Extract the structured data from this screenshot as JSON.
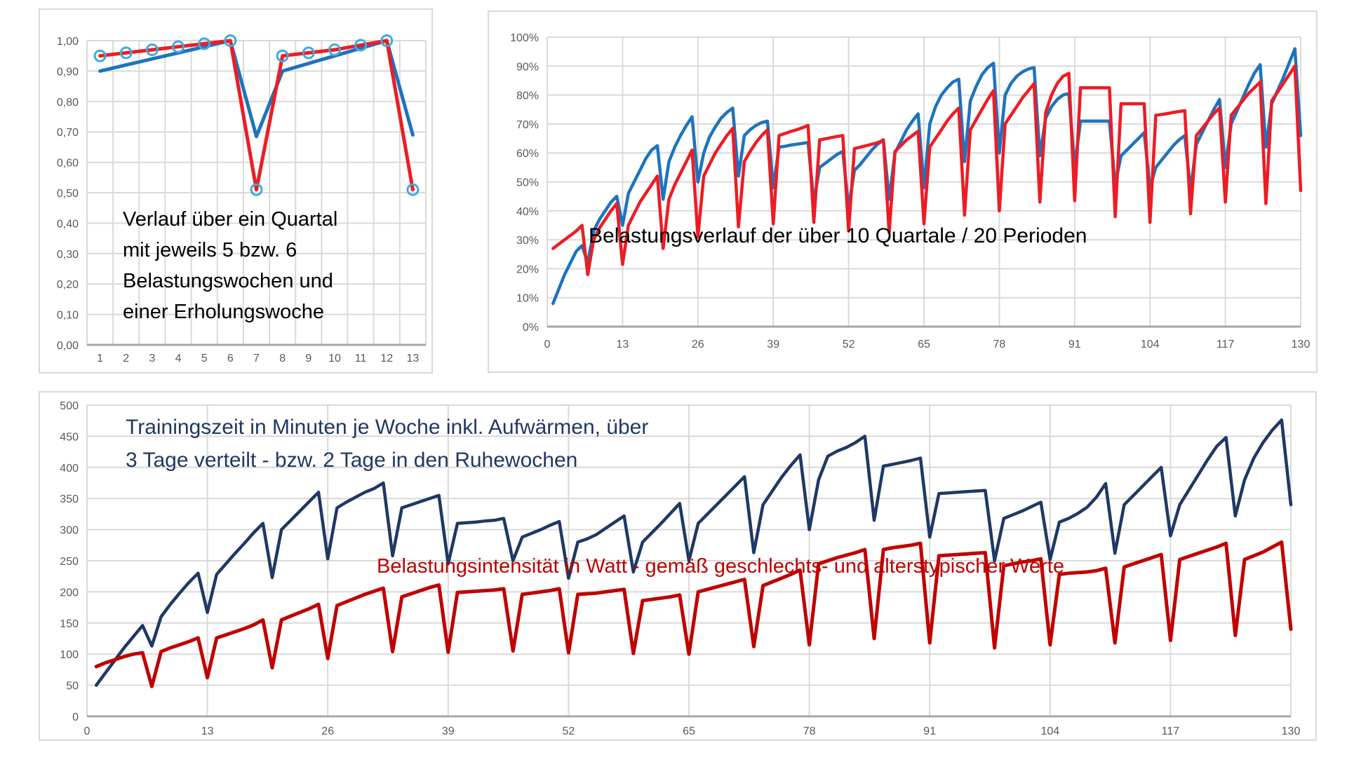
{
  "page": {
    "background": "#ffffff",
    "grid_color": "#d9d9d9",
    "axis_color": "#a6a6a6",
    "tick_color": "#595959"
  },
  "chart_data": [
    {
      "id": "quartal",
      "type": "line",
      "annotation": {
        "lines": [
          "Verlauf über ein Quartal",
          "mit jeweils 5 bzw. 6",
          "Belastungswochen und",
          "einer Erholungswoche"
        ],
        "color": "#000000"
      },
      "x": {
        "type": "category",
        "labels": [
          "1",
          "2",
          "3",
          "4",
          "5",
          "6",
          "7",
          "8",
          "9",
          "10",
          "11",
          "12",
          "13"
        ]
      },
      "y": {
        "min": 0,
        "max": 1,
        "step": 0.1,
        "tick_labels": [
          "0,00",
          "0,10",
          "0,20",
          "0,30",
          "0,40",
          "0,50",
          "0,60",
          "0,70",
          "0,80",
          "0,90",
          "1,00"
        ]
      },
      "grid": true,
      "legend": "none",
      "series": [
        {
          "name": "blue-line",
          "color": "#1e73be",
          "width": 5,
          "values": [
            0.9,
            0.92,
            0.94,
            0.96,
            0.98,
            1.0,
            0.685,
            0.9,
            0.925,
            0.95,
            0.975,
            1.0,
            0.69
          ]
        },
        {
          "name": "red-line",
          "color": "#ed1c24",
          "width": 5,
          "marker": {
            "shape": "circle",
            "color": "#41a9dc",
            "radius": 7.5,
            "stroke": 3
          },
          "values": [
            0.95,
            0.96,
            0.97,
            0.98,
            0.99,
            1.0,
            0.51,
            0.95,
            0.96,
            0.97,
            0.985,
            1.0,
            0.51
          ]
        }
      ]
    },
    {
      "id": "belastungsverlauf",
      "type": "line",
      "annotation": {
        "lines": [
          "Belastungsverlauf der über 10 Quartale / 20 Perioden"
        ],
        "color": "#000000"
      },
      "x": {
        "type": "numeric",
        "min": 0,
        "max": 130,
        "first_week": 1,
        "tick_values": [
          0,
          13,
          26,
          39,
          52,
          65,
          78,
          91,
          104,
          117,
          130
        ],
        "tick_labels": [
          "0",
          "13",
          "26",
          "39",
          "52",
          "65",
          "78",
          "91",
          "104",
          "117",
          "130"
        ]
      },
      "y": {
        "min": 0,
        "max": 100,
        "step": 10,
        "tick_labels": [
          "0%",
          "10%",
          "20%",
          "30%",
          "40%",
          "50%",
          "60%",
          "70%",
          "80%",
          "90%",
          "100%"
        ]
      },
      "grid": true,
      "legend": "none",
      "series": [
        {
          "name": "blue-line",
          "color": "#1e73be",
          "width": 4.5,
          "values": [
            8,
            13,
            18,
            22,
            26,
            28,
            22,
            33,
            37,
            40,
            43,
            45,
            35,
            46,
            50,
            54,
            58,
            61,
            62.5,
            44,
            57,
            62,
            66,
            69.5,
            72.5,
            50,
            60,
            65.5,
            69,
            72,
            74,
            75.5,
            52,
            66,
            68,
            69.5,
            70.5,
            71,
            48,
            62,
            62.3,
            62.7,
            63,
            63.3,
            63.6,
            43,
            55,
            56.5,
            58,
            59.5,
            60.5,
            41,
            54,
            56,
            58.5,
            61,
            63,
            64.5,
            44,
            60,
            64,
            68,
            71,
            73.5,
            48,
            70,
            76,
            80,
            82.5,
            84.5,
            85.5,
            57,
            78,
            83,
            87,
            89.5,
            91,
            60,
            80,
            84,
            86.5,
            88,
            89,
            89.5,
            59,
            72,
            76,
            78.5,
            80,
            80.5,
            55,
            71,
            71,
            71,
            71,
            71,
            71,
            49,
            59,
            61,
            63,
            65,
            67,
            48,
            55,
            57.5,
            60,
            62.5,
            64.5,
            66,
            47,
            63,
            67,
            71,
            75,
            78.5,
            55,
            70,
            74.5,
            79,
            83.5,
            87.5,
            90.5,
            62,
            77,
            81.5,
            86,
            91,
            96,
            66
          ]
        },
        {
          "name": "red-line",
          "color": "#ed1c24",
          "width": 4.5,
          "values": [
            27,
            28.5,
            30,
            31.5,
            33,
            35,
            18,
            30,
            34,
            37,
            40,
            42.5,
            21.5,
            35,
            39,
            43,
            46,
            49,
            52,
            27,
            44,
            49,
            53,
            57,
            61,
            31,
            52,
            56,
            60,
            63,
            66,
            68.5,
            34.5,
            57,
            60.5,
            63.5,
            66,
            68,
            35.5,
            66,
            66.7,
            67.4,
            68,
            68.7,
            69.5,
            36,
            64.5,
            64.9,
            65.3,
            65.7,
            66,
            33,
            61.5,
            62,
            62.5,
            63,
            63.5,
            64.5,
            32.5,
            60.5,
            62.5,
            64.5,
            66,
            67.5,
            35.5,
            62,
            65,
            68,
            71,
            73.5,
            75.5,
            38.5,
            68,
            71.5,
            75,
            78.5,
            81.5,
            40,
            70,
            73,
            76,
            79,
            81.5,
            84,
            43,
            74,
            80,
            84,
            86.5,
            87.5,
            43.5,
            82.5,
            82.5,
            82.5,
            82.5,
            82.5,
            82.5,
            38,
            77,
            77,
            77,
            77,
            77,
            36,
            73,
            73.3,
            73.6,
            74,
            74.3,
            74.6,
            39,
            66,
            68.5,
            71,
            73.5,
            75.5,
            43,
            73,
            75.5,
            78,
            80.5,
            82.5,
            84.5,
            42.5,
            78,
            81,
            84,
            87,
            90,
            47
          ]
        }
      ]
    },
    {
      "id": "training",
      "type": "line",
      "annotation_blue": {
        "lines": [
          "Trainingszeit in Minuten je Woche inkl. Aufwärmen, über",
          "3 Tage verteilt  - bzw. 2 Tage in den Ruhewochen"
        ],
        "color": "#1f3864"
      },
      "annotation_red": {
        "lines": [
          "Belastungsintensität in Watt - gemäß geschlechts- und alterstypischer Werte"
        ],
        "color": "#c00000"
      },
      "x": {
        "type": "numeric",
        "min": 0,
        "max": 130,
        "first_week": 1,
        "tick_values": [
          0,
          13,
          26,
          39,
          52,
          65,
          78,
          91,
          104,
          117,
          130
        ],
        "tick_labels": [
          "0",
          "13",
          "26",
          "39",
          "52",
          "65",
          "78",
          "91",
          "104",
          "117",
          "130"
        ]
      },
      "y": {
        "min": 0,
        "max": 500,
        "step": 50,
        "tick_labels": [
          "0",
          "50",
          "100",
          "150",
          "200",
          "250",
          "300",
          "350",
          "400",
          "450",
          "500"
        ]
      },
      "grid": true,
      "legend": "none",
      "series": [
        {
          "name": "navy-line",
          "color": "#1f3864",
          "width": 4.5,
          "values": [
            50,
            70,
            90,
            110,
            128,
            146,
            113,
            160,
            180,
            198,
            215,
            230,
            167,
            228,
            245,
            262,
            278,
            295,
            310,
            223,
            300,
            315,
            330,
            345,
            360,
            253,
            335,
            344,
            352,
            360,
            366,
            375,
            258,
            335,
            340,
            345,
            350,
            355,
            245,
            310,
            311,
            312,
            314,
            315,
            318,
            250,
            288,
            294,
            300,
            307,
            313,
            222,
            280,
            285,
            292,
            302,
            312,
            322,
            232,
            280,
            295,
            310,
            326,
            342,
            250,
            310,
            325,
            340,
            355,
            370,
            385,
            263,
            340,
            362,
            384,
            403,
            420,
            300,
            380,
            418,
            426,
            432,
            440,
            450,
            315,
            402,
            405,
            408,
            411,
            415,
            288,
            358,
            359,
            360,
            361,
            362,
            363,
            250,
            318,
            324,
            330,
            337,
            344,
            252,
            312,
            318,
            326,
            336,
            352,
            374,
            262,
            340,
            355,
            370,
            385,
            400,
            290,
            340,
            364,
            388,
            412,
            434,
            448,
            322,
            380,
            415,
            440,
            460,
            476,
            340
          ]
        },
        {
          "name": "darkred-line",
          "color": "#c00000",
          "width": 5,
          "values": [
            80,
            86,
            91,
            96,
            100,
            102,
            48,
            104,
            110,
            115,
            120,
            126,
            62,
            126,
            131,
            136,
            141,
            147,
            155,
            78,
            155,
            161,
            167,
            173,
            180,
            93,
            178,
            184,
            190,
            196,
            201,
            206,
            104,
            192,
            197,
            202,
            207,
            211,
            103,
            199,
            200,
            201,
            202,
            203,
            205,
            105,
            196,
            198,
            200,
            202,
            205,
            102,
            196,
            197,
            198,
            200,
            202,
            204,
            101,
            186,
            188,
            190,
            192,
            195,
            100,
            200,
            204,
            208,
            212,
            216,
            220,
            112,
            210,
            216,
            222,
            228,
            235,
            115,
            245,
            250,
            255,
            259,
            263,
            268,
            125,
            268,
            271,
            273,
            275,
            278,
            118,
            258,
            259,
            260,
            261,
            262,
            263,
            110,
            242,
            245,
            248,
            250,
            253,
            115,
            228,
            230,
            231,
            232,
            234,
            238,
            118,
            240,
            245,
            250,
            255,
            260,
            122,
            252,
            257,
            262,
            267,
            272,
            278,
            130,
            252,
            258,
            264,
            272,
            280,
            140
          ]
        }
      ]
    }
  ]
}
